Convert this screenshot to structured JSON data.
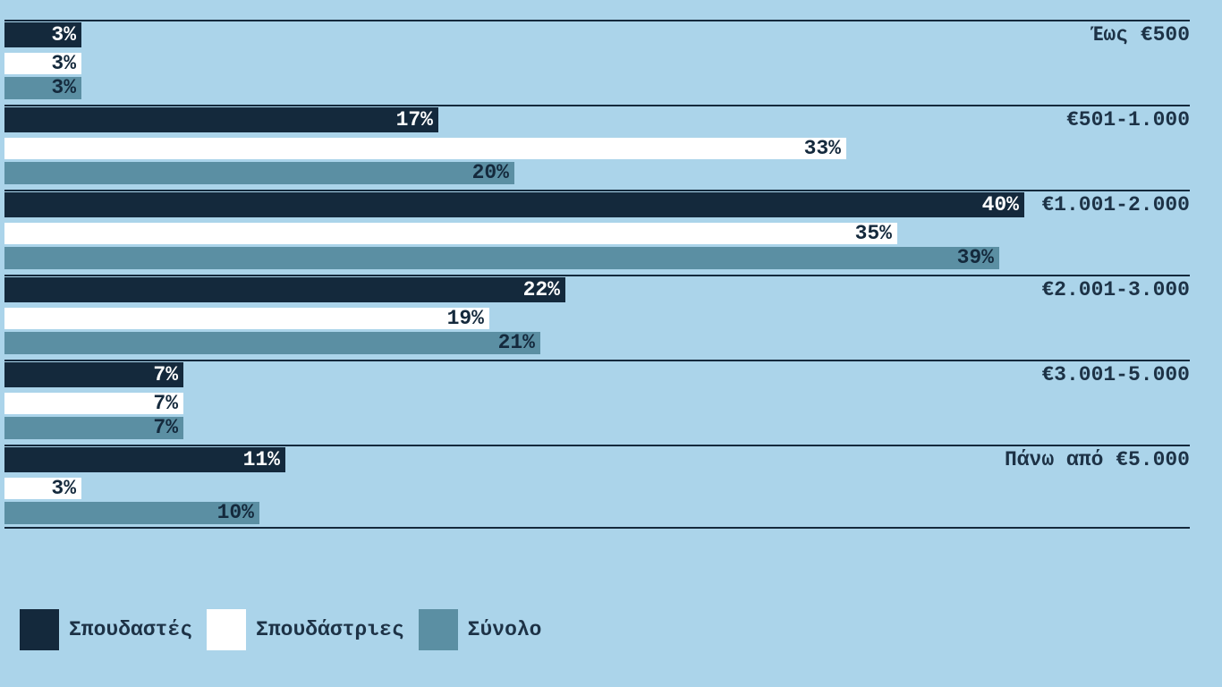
{
  "background_color": "#abd4ea",
  "chart_data": {
    "type": "bar",
    "orientation": "horizontal",
    "title": "",
    "xlabel": "",
    "ylabel": "",
    "value_suffix": "%",
    "xlim": [
      0,
      46.5
    ],
    "legend_position": "bottom-left",
    "axis_line_color": "#14293c",
    "label_text_color": "#1d3246",
    "categories": [
      "Έως €500",
      "€501-1.000",
      "€1.001-2.000",
      "€2.001-3.000",
      "€3.001-5.000",
      "Πάνω από €5.000"
    ],
    "series": [
      {
        "name": "Σπουδαστές",
        "color": "#14293c",
        "label_color": "#ffffff",
        "values": [
          3,
          17,
          40,
          22,
          7,
          11
        ]
      },
      {
        "name": "Σπουδάστριες",
        "color": "#ffffff",
        "label_color": "#14293c",
        "values": [
          3,
          33,
          35,
          19,
          7,
          3
        ]
      },
      {
        "name": "Σύνολο",
        "color": "#5b8fa3",
        "label_color": "#14293c",
        "values": [
          3,
          20,
          39,
          21,
          7,
          10
        ]
      }
    ]
  }
}
